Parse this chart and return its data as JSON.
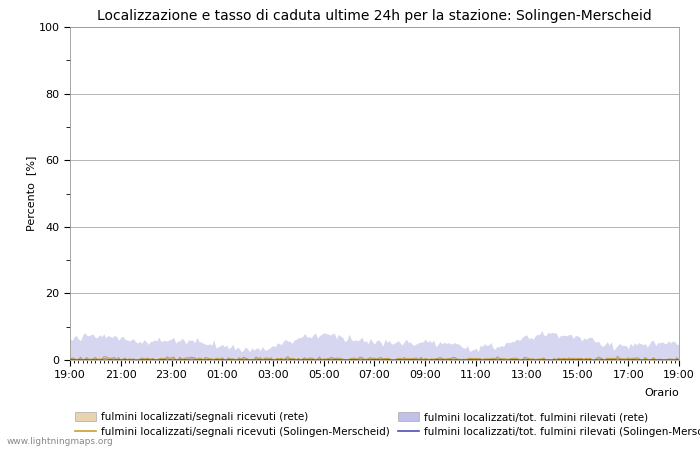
{
  "title": "Localizzazione e tasso di caduta ultime 24h per la stazione: Solingen-Merscheid",
  "ylabel": "Percento  [%]",
  "xlabel_right": "Orario",
  "watermark": "www.lightningmaps.org",
  "ylim": [
    0,
    100
  ],
  "yticks_major": [
    0,
    20,
    40,
    60,
    80,
    100
  ],
  "yticks_minor": [
    10,
    30,
    50,
    70,
    90
  ],
  "x_labels": [
    "19:00",
    "21:00",
    "23:00",
    "01:00",
    "03:00",
    "05:00",
    "07:00",
    "09:00",
    "11:00",
    "13:00",
    "15:00",
    "17:00",
    "19:00"
  ],
  "n_points": 289,
  "fill_rete_color": "#e8d5b0",
  "fill_rete_alpha": 0.85,
  "fill_station_color": "#c0c0e8",
  "fill_station_alpha": 0.65,
  "line_rete_color": "#c8a030",
  "line_station_color": "#5050b0",
  "legend_labels": [
    "fulmini localizzati/segnali ricevuti (rete)",
    "fulmini localizzati/segnali ricevuti (Solingen-Merscheid)",
    "fulmini localizzati/tot. fulmini rilevati (rete)",
    "fulmini localizzati/tot. fulmini rilevati (Solingen-Merscheid)"
  ],
  "background_color": "#ffffff",
  "plot_bg_color": "#ffffff",
  "grid_color": "#aaaaaa",
  "title_fontsize": 10,
  "axis_fontsize": 8,
  "legend_fontsize": 7.5
}
